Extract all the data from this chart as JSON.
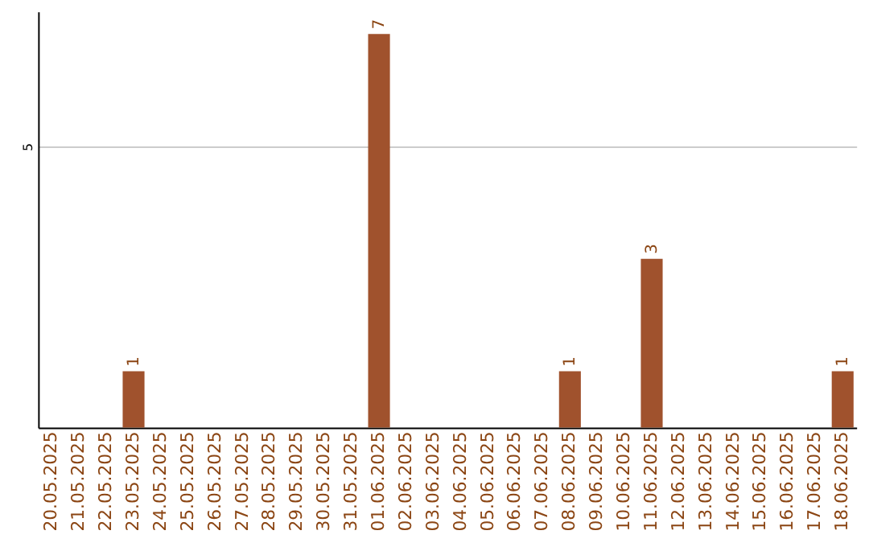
{
  "chart_data": {
    "type": "bar",
    "categories": [
      "20.05.2025",
      "21.05.2025",
      "22.05.2025",
      "23.05.2025",
      "24.05.2025",
      "25.05.2025",
      "26.05.2025",
      "27.05.2025",
      "28.05.2025",
      "29.05.2025",
      "30.05.2025",
      "31.05.2025",
      "01.06.2025",
      "02.06.2025",
      "03.06.2025",
      "04.06.2025",
      "05.06.2025",
      "06.06.2025",
      "07.06.2025",
      "08.06.2025",
      "09.06.2025",
      "10.06.2025",
      "11.06.2025",
      "12.06.2025",
      "13.06.2025",
      "14.06.2025",
      "15.06.2025",
      "16.06.2025",
      "17.06.2025",
      "18.06.2025"
    ],
    "values": [
      0,
      0,
      0,
      1,
      0,
      0,
      0,
      0,
      0,
      0,
      0,
      0,
      7,
      0,
      0,
      0,
      0,
      0,
      0,
      1,
      0,
      0,
      3,
      0,
      0,
      0,
      0,
      0,
      0,
      1
    ],
    "value_labels": [
      null,
      null,
      null,
      "1",
      null,
      null,
      null,
      null,
      null,
      null,
      null,
      null,
      "7",
      null,
      null,
      null,
      null,
      null,
      null,
      "1",
      null,
      null,
      "3",
      null,
      null,
      null,
      null,
      null,
      null,
      "1"
    ],
    "color": "#a0522d",
    "ylim": [
      0,
      7.4
    ],
    "yticks": [
      5
    ],
    "grid": "y"
  }
}
